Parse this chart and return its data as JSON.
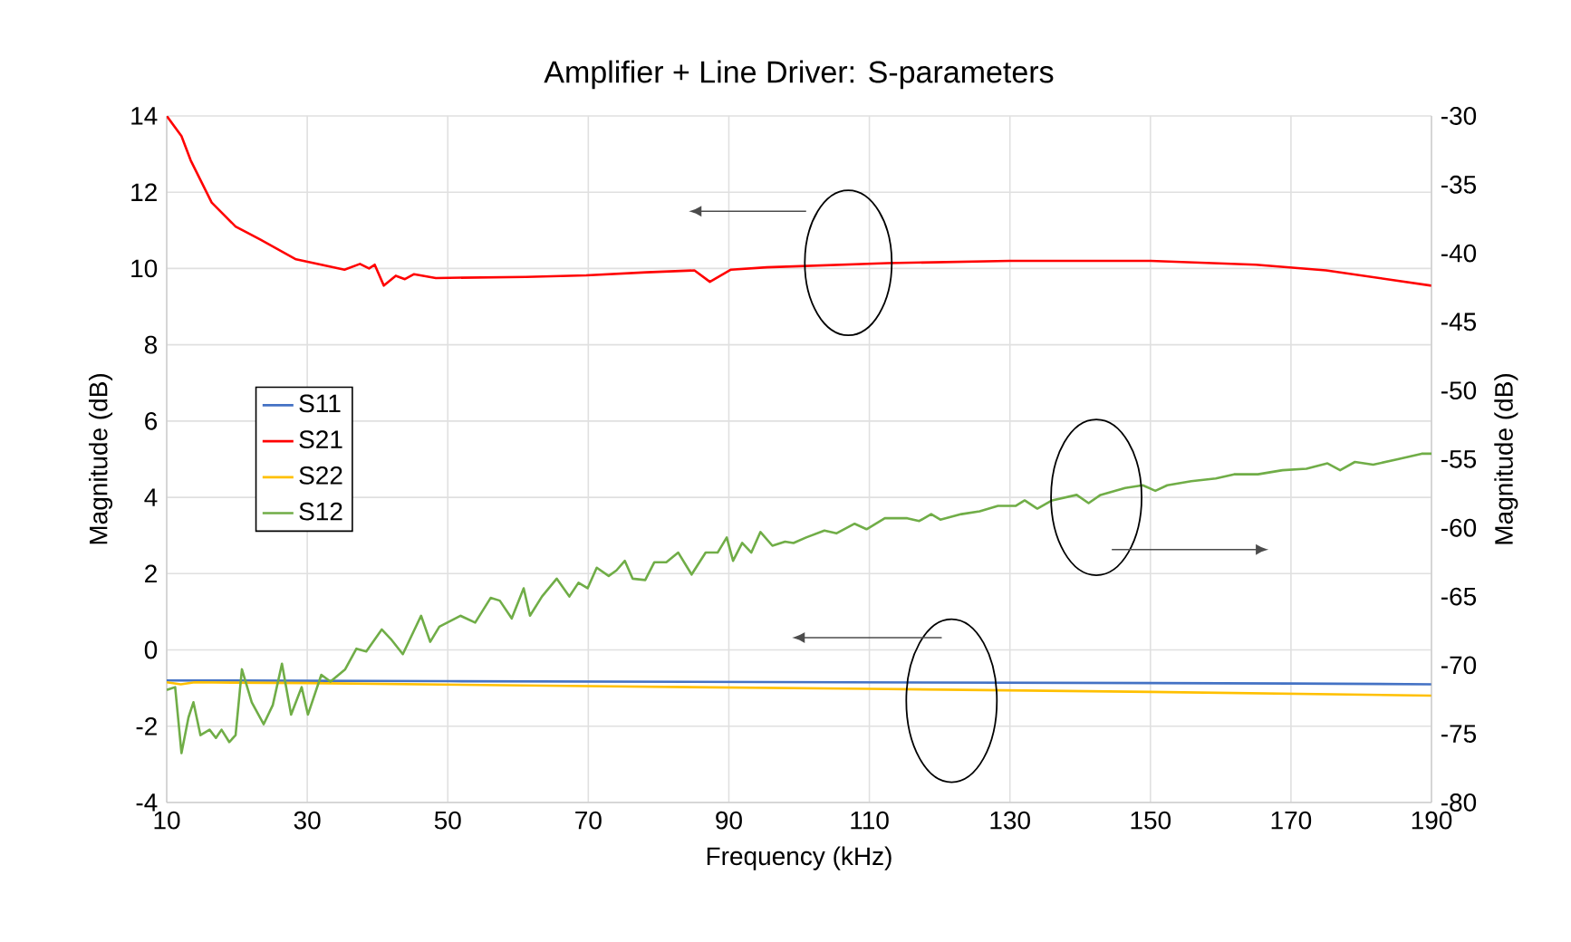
{
  "chart_data": {
    "type": "line",
    "title": "Amplifier + Line Driver: S-parameters",
    "xlabel": "Frequency (kHz)",
    "ylabel": "Magnitude (dB)",
    "y2label": "Magnitude (dB)",
    "xlim": [
      10,
      190
    ],
    "xticks": [
      10,
      30,
      50,
      70,
      90,
      110,
      130,
      150,
      170,
      190
    ],
    "ylim": [
      -4,
      14
    ],
    "yticks": [
      -4,
      -2,
      0,
      2,
      4,
      6,
      8,
      10,
      12,
      14
    ],
    "y2lim": [
      -80,
      -30
    ],
    "y2ticks": [
      -80,
      -75,
      -70,
      -65,
      -60,
      -55,
      -50,
      -45,
      -40,
      -35,
      -30
    ],
    "grid": true,
    "legend": "left",
    "marker": "none",
    "line_style": "solid",
    "series": [
      {
        "name": "S11",
        "color": "#4472c4",
        "x": [
          10,
          50,
          90,
          130,
          170,
          190
        ],
        "values": [
          -0.8,
          -0.82,
          -0.84,
          -0.86,
          -0.88,
          -0.9
        ]
      },
      {
        "name": "S21",
        "color": "#ff0000",
        "x": [
          10,
          12.1,
          13.4,
          16.4,
          19.8,
          23.3,
          28.4,
          35.3,
          37.5,
          38.8,
          39.6,
          40.9,
          42.6,
          43.9,
          45.2,
          48.3,
          61.1,
          69.7,
          78.3,
          85.1,
          87.3,
          90.3,
          95.4,
          112.6,
          130,
          150,
          165,
          175,
          190
        ],
        "values": [
          14,
          13.47,
          12.84,
          11.73,
          11.1,
          10.76,
          10.24,
          9.97,
          10.12,
          10.0,
          10.1,
          9.55,
          9.81,
          9.72,
          9.85,
          9.75,
          9.78,
          9.82,
          9.9,
          9.95,
          9.65,
          9.97,
          10.03,
          10.14,
          10.2,
          10.2,
          10.1,
          9.95,
          9.55
        ]
      },
      {
        "name": "S22",
        "color": "#ffc000",
        "x": [
          10,
          12,
          14,
          30,
          70,
          110,
          150,
          190
        ],
        "values": [
          -0.85,
          -0.9,
          -0.85,
          -0.87,
          -0.95,
          -1.02,
          -1.1,
          -1.2
        ]
      },
      {
        "name": "S12",
        "color": "#70ad47",
        "axis": "y2",
        "x": [
          10,
          11.2,
          12.1,
          13.1,
          13.8,
          14.8,
          16.1,
          17,
          17.8,
          18.9,
          19.8,
          20.7,
          22.1,
          23.8,
          25.1,
          26.4,
          27.7,
          29.2,
          30.1,
          32,
          33.3,
          35.4,
          37,
          38.4,
          40.6,
          41.9,
          43.6,
          46.2,
          47.5,
          48.8,
          51.8,
          53.9,
          56.1,
          57.4,
          59.1,
          60.8,
          61.7,
          63.4,
          65.5,
          67.3,
          68.6,
          69.9,
          71.2,
          72.9,
          74,
          75.2,
          76.3,
          78.1,
          79.4,
          81.1,
          82.8,
          84.7,
          86.7,
          88.4,
          89.7,
          90.6,
          91.9,
          93.2,
          94.5,
          96.2,
          98,
          99.2,
          101,
          103.6,
          105.3,
          107.9,
          109.6,
          112.2,
          115.4,
          117.1,
          118.8,
          120.1,
          123.1,
          125.7,
          128.3,
          130.8,
          132.1,
          133.9,
          136,
          139.5,
          141.2,
          142.9,
          146.4,
          148.9,
          150.7,
          152.4,
          155.8,
          159.3,
          161.9,
          165.3,
          168.8,
          172.2,
          175.2,
          177,
          179.1,
          181.7,
          185.2,
          188.6,
          190
        ],
        "values": [
          -71.8,
          -71.6,
          -76.4,
          -73.8,
          -72.7,
          -75.1,
          -74.7,
          -75.3,
          -74.7,
          -75.6,
          -75.1,
          -70.3,
          -72.7,
          -74.3,
          -72.9,
          -69.9,
          -73.6,
          -71.6,
          -73.6,
          -70.7,
          -71.2,
          -70.3,
          -68.8,
          -69,
          -67.4,
          -68.1,
          -69.2,
          -66.4,
          -68.3,
          -67.2,
          -66.4,
          -66.9,
          -65.1,
          -65.3,
          -66.6,
          -64.4,
          -66.4,
          -65,
          -63.7,
          -65,
          -64,
          -64.4,
          -62.9,
          -63.5,
          -63.1,
          -62.4,
          -63.7,
          -63.8,
          -62.5,
          -62.5,
          -61.8,
          -63.4,
          -61.8,
          -61.8,
          -60.7,
          -62.4,
          -61.1,
          -61.8,
          -60.3,
          -61.3,
          -61,
          -61.1,
          -60.7,
          -60.2,
          -60.4,
          -59.7,
          -60.1,
          -59.3,
          -59.3,
          -59.5,
          -59,
          -59.4,
          -59,
          -58.8,
          -58.4,
          -58.4,
          -58,
          -58.6,
          -58,
          -57.6,
          -58.2,
          -57.6,
          -57.1,
          -56.9,
          -57.3,
          -56.9,
          -56.6,
          -56.4,
          -56.1,
          -56.1,
          -55.8,
          -55.7,
          -55.3,
          -55.8,
          -55.2,
          -55.4,
          -55,
          -54.6,
          -54.6
        ]
      }
    ]
  }
}
